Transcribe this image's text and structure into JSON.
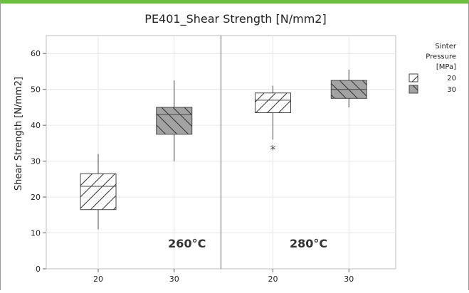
{
  "chart_data": {
    "type": "box",
    "title": "PE401_Shear Strength [N/mm2]",
    "ylabel": "Shear Strength [N/mm2]",
    "xlabel": "",
    "ylim": [
      0,
      65
    ],
    "yticks": [
      "0",
      "10",
      "20",
      "30",
      "40",
      "50",
      "60"
    ],
    "grid": true,
    "legend": {
      "title_lines": [
        "Sinter",
        "Pressure",
        "[MPa]"
      ],
      "entries": [
        {
          "label": "20",
          "hatch": "forward",
          "fill": "#ffffff"
        },
        {
          "label": "30",
          "hatch": "backward",
          "fill": "#a3a3a3"
        }
      ],
      "placement": "right"
    },
    "panels": [
      {
        "label": "260°C",
        "boxes": [
          {
            "category": "20",
            "pressure": "20",
            "whisker_low": 11,
            "q1": 16.5,
            "median": 23,
            "q3": 26.5,
            "whisker_high": 32,
            "outliers": []
          },
          {
            "category": "30",
            "pressure": "30",
            "whisker_low": 30,
            "q1": 37.5,
            "median": 43,
            "q3": 45,
            "whisker_high": 52.5,
            "outliers": []
          }
        ]
      },
      {
        "label": "280°C",
        "boxes": [
          {
            "category": "20",
            "pressure": "20",
            "whisker_low": 36,
            "q1": 43.5,
            "median": 47,
            "q3": 49,
            "whisker_high": 51,
            "outliers": [
              34
            ]
          },
          {
            "category": "30",
            "pressure": "30",
            "whisker_low": 45,
            "q1": 47.5,
            "median": 50,
            "q3": 52.5,
            "whisker_high": 55.5,
            "outliers": []
          }
        ]
      }
    ]
  }
}
